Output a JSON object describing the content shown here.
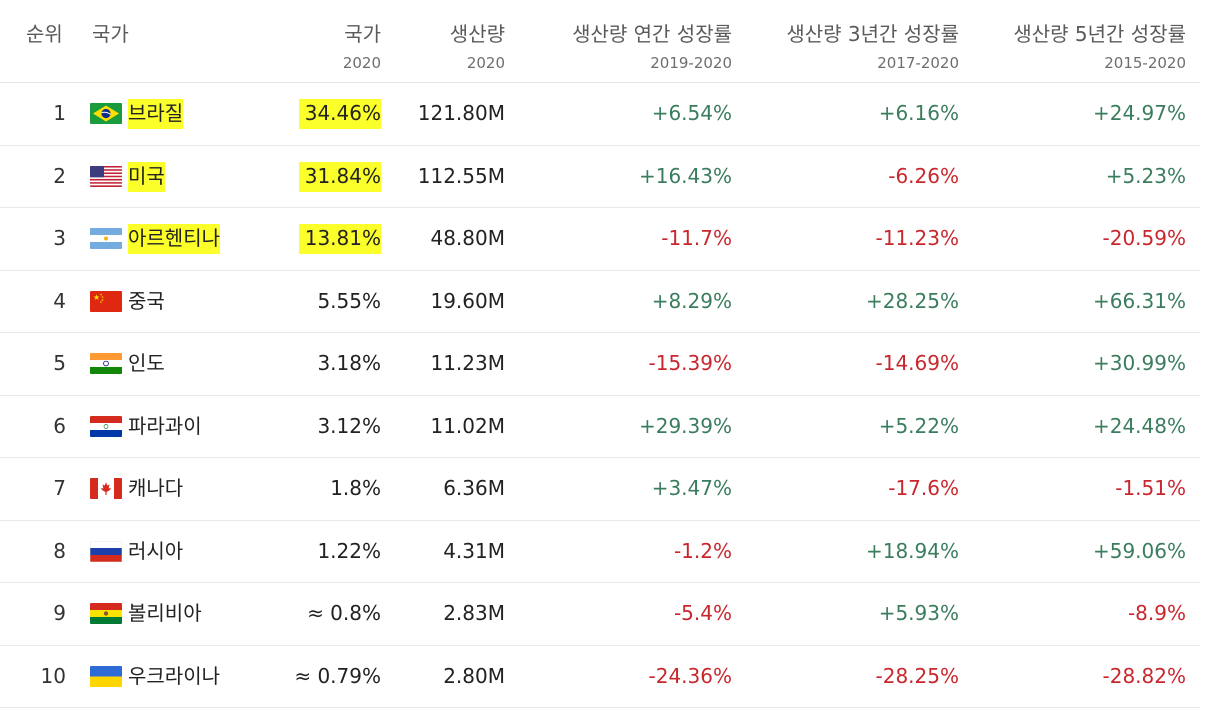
{
  "header": {
    "rank": "순위",
    "country": "국가",
    "share": "국가",
    "share_year": "2020",
    "production": "생산량",
    "production_year": "2020",
    "growth_1y": "생산량 연간 성장률",
    "growth_1y_period": "2019-2020",
    "growth_3y": "생산량 3년간 성장률",
    "growth_3y_period": "2017-2020",
    "growth_5y": "생산량 5년간 성장률",
    "growth_5y_period": "2015-2020"
  },
  "rows": [
    {
      "rank": "1",
      "country": "브라질",
      "flag": "brazil-flag-icon",
      "share": "34.46%",
      "production": "121.80M",
      "g1": "+6.54%",
      "g3": "+6.16%",
      "g5": "+24.97%",
      "highlight": true
    },
    {
      "rank": "2",
      "country": "미국",
      "flag": "usa-flag-icon",
      "share": "31.84%",
      "production": "112.55M",
      "g1": "+16.43%",
      "g3": "-6.26%",
      "g5": "+5.23%",
      "highlight": true
    },
    {
      "rank": "3",
      "country": "아르헨티나",
      "flag": "argentina-flag-icon",
      "share": "13.81%",
      "production": "48.80M",
      "g1": "-11.7%",
      "g3": "-11.23%",
      "g5": "-20.59%",
      "highlight": true
    },
    {
      "rank": "4",
      "country": "중국",
      "flag": "china-flag-icon",
      "share": "5.55%",
      "production": "19.60M",
      "g1": "+8.29%",
      "g3": "+28.25%",
      "g5": "+66.31%"
    },
    {
      "rank": "5",
      "country": "인도",
      "flag": "india-flag-icon",
      "share": "3.18%",
      "production": "11.23M",
      "g1": "-15.39%",
      "g3": "-14.69%",
      "g5": "+30.99%"
    },
    {
      "rank": "6",
      "country": "파라과이",
      "flag": "paraguay-flag-icon",
      "share": "3.12%",
      "production": "11.02M",
      "g1": "+29.39%",
      "g3": "+5.22%",
      "g5": "+24.48%"
    },
    {
      "rank": "7",
      "country": "캐나다",
      "flag": "canada-flag-icon",
      "share": "1.8%",
      "production": "6.36M",
      "g1": "+3.47%",
      "g3": "-17.6%",
      "g5": "-1.51%"
    },
    {
      "rank": "8",
      "country": "러시아",
      "flag": "russia-flag-icon",
      "share": "1.22%",
      "production": "4.31M",
      "g1": "-1.2%",
      "g3": "+18.94%",
      "g5": "+59.06%"
    },
    {
      "rank": "9",
      "country": "볼리비아",
      "flag": "bolivia-flag-icon",
      "share": "≈ 0.8%",
      "production": "2.83M",
      "g1": "-5.4%",
      "g3": "+5.93%",
      "g5": "-8.9%"
    },
    {
      "rank": "10",
      "country": "우크라이나",
      "flag": "ukraine-flag-icon",
      "share": "≈ 0.79%",
      "production": "2.80M",
      "g1": "-24.36%",
      "g3": "-28.25%",
      "g5": "-28.82%"
    }
  ],
  "colors": {
    "positive": "#3a7d5d",
    "negative": "#c8272d",
    "highlight": "#fbff2a"
  }
}
